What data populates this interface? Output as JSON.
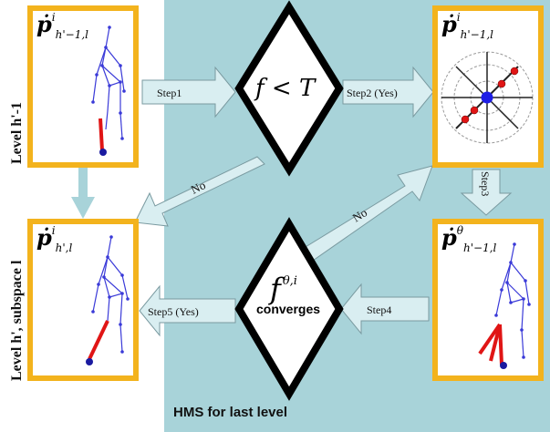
{
  "panel": {
    "label": "HMS for last level"
  },
  "left_labels": {
    "top": "Level h'-1",
    "bottom": "Level h', subspace l"
  },
  "boxes": {
    "top_left": {
      "symbol": "ṗ",
      "sup": "i",
      "sub": "h'−1,l"
    },
    "bottom_left": {
      "symbol": "ṗ",
      "sup": "i",
      "sub": "h',l"
    },
    "top_right": {
      "symbol": "ṗ",
      "sup": "i",
      "sub": "h'−1,l"
    },
    "bottom_right": {
      "symbol": "ṗ",
      "sup": "θ",
      "sub": "h'−1,l"
    }
  },
  "decisions": {
    "top": {
      "expression": "f < T"
    },
    "bottom": {
      "expression": "f",
      "sup": "θ,i",
      "word": "converges"
    }
  },
  "arrows": {
    "step1": "Step1",
    "step2": "Step2 (Yes)",
    "step3": "Step3",
    "step4": "Step4",
    "step5": "Step5 (Yes)",
    "no_top": "No",
    "no_bottom": "No"
  },
  "colors": {
    "panel": "#a8d3d9",
    "frame": "#f3b31d",
    "arrow_fill": "#d9eef1",
    "skeleton": "#3a3ad8",
    "highlight": "#e01515"
  }
}
